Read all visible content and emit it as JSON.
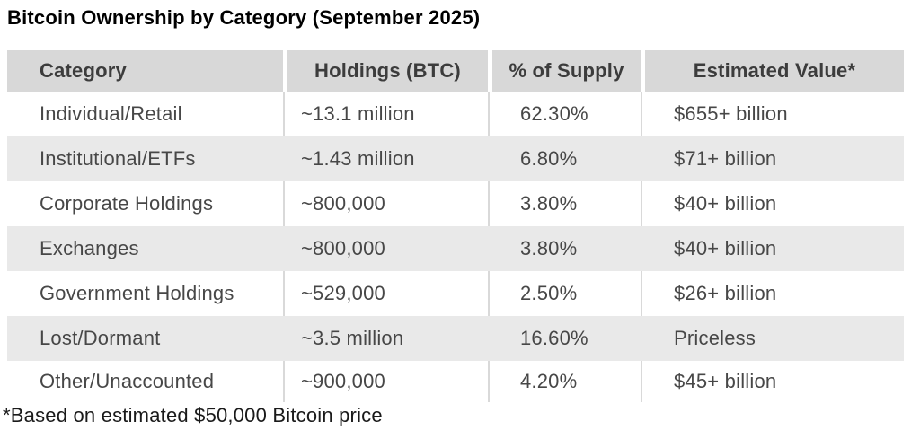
{
  "chart_data": {
    "type": "table",
    "title": "Bitcoin Ownership by Category (September 2025)",
    "columns": [
      "Category",
      "Holdings (BTC)",
      "% of Supply",
      "Estimated Value*"
    ],
    "rows": [
      [
        "Individual/Retail",
        "~13.1 million",
        "62.30%",
        "$655+ billion"
      ],
      [
        "Institutional/ETFs",
        "~1.43 million",
        "6.80%",
        "$71+ billion"
      ],
      [
        "Corporate Holdings",
        "~800,000",
        "3.80%",
        "$40+ billion"
      ],
      [
        "Exchanges",
        "~800,000",
        "3.80%",
        "$40+ billion"
      ],
      [
        "Government Holdings",
        "~529,000",
        "2.50%",
        "$26+ billion"
      ],
      [
        "Lost/Dormant",
        "~3.5 million",
        "16.60%",
        "Priceless"
      ],
      [
        "Other/Unaccounted",
        "~900,000",
        "4.20%",
        "$45+ billion"
      ]
    ],
    "footnote": "*Based on estimated $50,000 Bitcoin price",
    "layout_hints": {
      "banded_rows": true,
      "grid": "vertical separators only, hidden on banded rows"
    }
  },
  "colors": {
    "header_bg": "#d8d8d8",
    "band_bg": "#e9e9e9",
    "separator": "#d9d9d9",
    "header_text": "#3c3c3c",
    "cell_text": "#474747",
    "title_text": "#000000",
    "footnote_text": "#1a1a1a"
  }
}
